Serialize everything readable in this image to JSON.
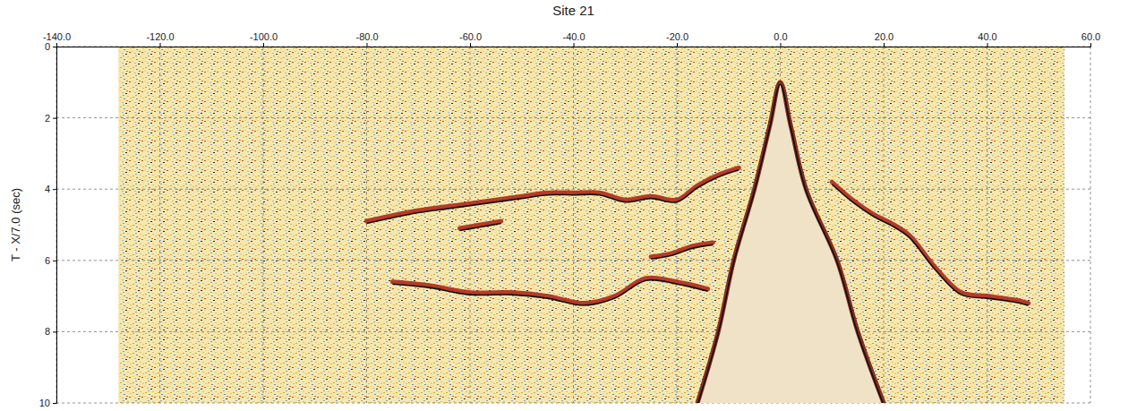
{
  "chart_data": {
    "type": "line",
    "title": "Site 21",
    "y_label": "T - X/7.0 (sec)",
    "xlim": [
      -140,
      60
    ],
    "ylim": [
      0,
      10
    ],
    "xticks": [
      {
        "value": -140,
        "label": "-140.0"
      },
      {
        "value": -120,
        "label": "-120.0"
      },
      {
        "value": -100,
        "label": "-100.0"
      },
      {
        "value": -80,
        "label": "-80.0"
      },
      {
        "value": -60,
        "label": "-60.0"
      },
      {
        "value": -40,
        "label": "-40.0"
      },
      {
        "value": -20,
        "label": "-20.0"
      },
      {
        "value": 0,
        "label": "0.0"
      },
      {
        "value": 20,
        "label": "20.0"
      },
      {
        "value": 40,
        "label": "40.0"
      },
      {
        "value": 60,
        "label": "60.0"
      }
    ],
    "yticks": [
      0,
      2,
      4,
      6,
      8,
      10
    ],
    "grid": true,
    "record_extent": [
      -128,
      55
    ],
    "series": [
      {
        "color": "#7a1a10",
        "x": [
          -16,
          -12,
          -9,
          -5,
          -2,
          0,
          2,
          5,
          11,
          15,
          20
        ],
        "values": [
          10,
          8,
          6,
          4,
          2.2,
          1.0,
          2.2,
          4,
          6,
          8,
          10
        ]
      },
      {
        "color": "#b0281a",
        "x": [
          -8,
          -12,
          -16,
          -20,
          -25,
          -30,
          -35,
          -40,
          -45,
          -50,
          -55,
          -60,
          -65,
          -70,
          -80
        ],
        "values": [
          3.4,
          3.6,
          3.9,
          4.3,
          4.2,
          4.3,
          4.1,
          4.1,
          4.1,
          4.2,
          4.3,
          4.4,
          4.5,
          4.6,
          4.9
        ]
      },
      {
        "color": "#b0281a",
        "x": [
          10,
          14,
          18,
          22,
          25,
          30,
          35,
          40,
          45,
          48
        ],
        "values": [
          3.8,
          4.3,
          4.7,
          5.0,
          5.3,
          6.2,
          6.9,
          7.0,
          7.1,
          7.2
        ]
      },
      {
        "color": "#b0281a",
        "x": [
          -13,
          -17,
          -21,
          -25
        ],
        "values": [
          5.5,
          5.6,
          5.8,
          5.9
        ]
      },
      {
        "color": "#b0281a",
        "x": [
          -54,
          -58,
          -62
        ],
        "values": [
          4.9,
          5.0,
          5.1
        ]
      },
      {
        "color": "#b0281a",
        "x": [
          -14,
          -20,
          -26,
          -32,
          -38,
          -45,
          -52,
          -60,
          -68,
          -75
        ],
        "values": [
          6.8,
          6.6,
          6.5,
          7.0,
          7.2,
          7.0,
          6.9,
          6.9,
          6.7,
          6.6
        ]
      }
    ]
  }
}
